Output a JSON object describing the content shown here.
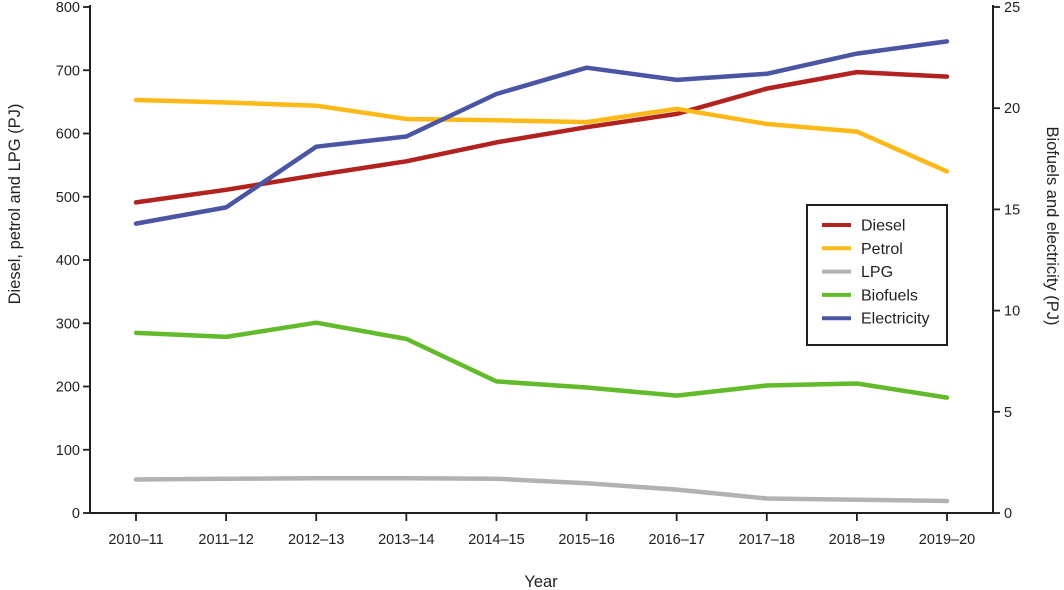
{
  "chart_data": {
    "type": "line",
    "title": "",
    "xlabel": "Year",
    "ylabel_left": "Diesel, petrol and LPG (PJ)",
    "ylabel_right": "Biofuels and electricity (PJ)",
    "categories": [
      "2010–11",
      "2011–12",
      "2012–13",
      "2013–14",
      "2014–15",
      "2015–16",
      "2016–17",
      "2017–18",
      "2018–19",
      "2019–20"
    ],
    "series": [
      {
        "name": "Diesel",
        "axis": "left",
        "color": "#b2221f",
        "values": [
          491,
          511,
          534,
          556,
          586,
          610,
          631,
          671,
          697,
          690
        ]
      },
      {
        "name": "Petrol",
        "axis": "left",
        "color": "#fcb917",
        "values": [
          653,
          649,
          644,
          623,
          621,
          618,
          639,
          615,
          603,
          540
        ]
      },
      {
        "name": "LPG",
        "axis": "left",
        "color": "#b2b2b2",
        "values": [
          53,
          54,
          55,
          55,
          54,
          47,
          37,
          23,
          21,
          19
        ]
      },
      {
        "name": "Biofuels",
        "axis": "right",
        "color": "#62bb2a",
        "values": [
          8.9,
          8.7,
          9.4,
          8.6,
          6.5,
          6.2,
          5.8,
          6.3,
          6.4,
          5.7
        ]
      },
      {
        "name": "Electricity",
        "axis": "right",
        "color": "#4a55a4",
        "values": [
          14.3,
          15.1,
          18.1,
          18.6,
          20.7,
          22.0,
          21.4,
          21.7,
          22.7,
          23.3
        ]
      }
    ],
    "ylim_left": [
      0,
      800
    ],
    "ytick_step_left": 100,
    "ylim_right": [
      0,
      25
    ],
    "ytick_step_right": 5,
    "grid": false,
    "legend": {
      "position": "middle-right",
      "entries": [
        "Diesel",
        "Petrol",
        "LPG",
        "Biofuels",
        "Electricity"
      ]
    },
    "colors": {
      "axis": "#231f20",
      "text": "#231f20",
      "background": "#ffffff"
    }
  }
}
